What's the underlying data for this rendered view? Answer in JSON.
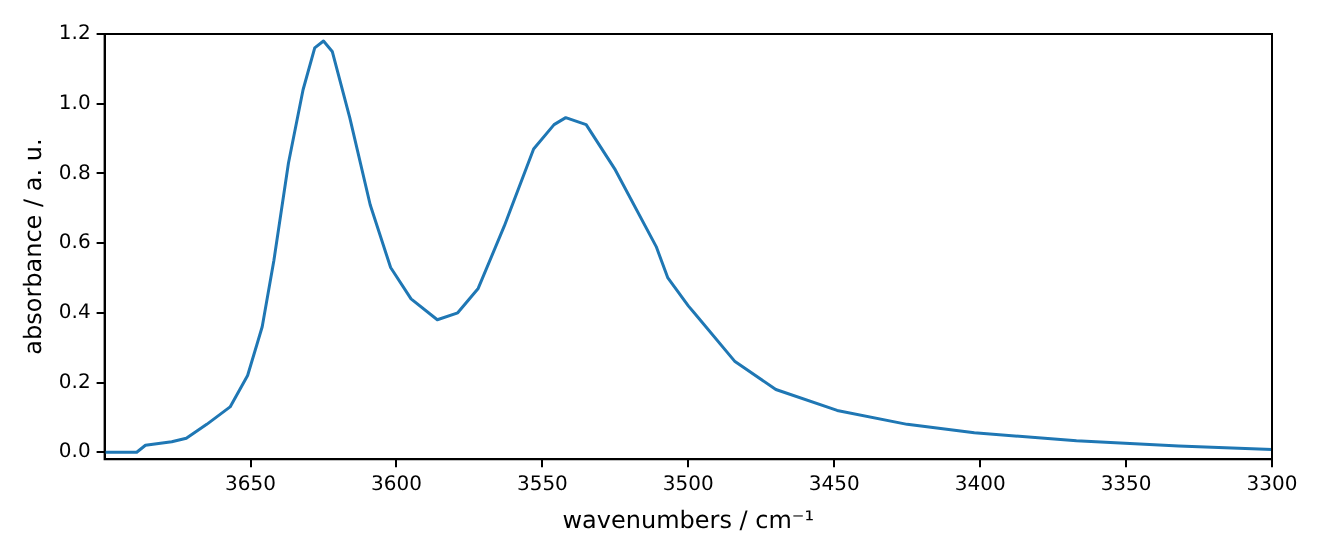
{
  "chart_data": {
    "type": "line",
    "xlabel": "wavenumbers / cm⁻¹",
    "ylabel": "absorbance / a. u.",
    "x": [
      3700,
      3689,
      3686,
      3677,
      3672,
      3665,
      3657,
      3651,
      3646,
      3642,
      3637,
      3632,
      3628,
      3625,
      3622,
      3616,
      3609,
      3602,
      3595,
      3586,
      3579,
      3572,
      3563,
      3553,
      3546,
      3542,
      3535,
      3525,
      3511,
      3507,
      3500,
      3498,
      3484,
      3470,
      3449,
      3425,
      3402,
      3367,
      3332,
      3300
    ],
    "series": [
      {
        "color": "#1f77b4",
        "values": [
          0.0,
          0.0,
          0.02,
          0.03,
          0.04,
          0.08,
          0.13,
          0.22,
          0.36,
          0.55,
          0.83,
          1.04,
          1.16,
          1.18,
          1.15,
          0.96,
          0.71,
          0.53,
          0.44,
          0.38,
          0.4,
          0.47,
          0.65,
          0.87,
          0.94,
          0.96,
          0.94,
          0.81,
          0.59,
          0.5,
          0.42,
          0.4,
          0.26,
          0.18,
          0.12,
          0.08,
          0.056,
          0.033,
          0.018,
          0.008
        ]
      }
    ],
    "xlim": [
      3700,
      3300
    ],
    "xticks": [
      3650,
      3600,
      3550,
      3500,
      3450,
      3400,
      3350,
      3300
    ],
    "ylim": [
      -0.02,
      1.2
    ],
    "yticks": [
      {
        "value": 0,
        "label": "0.0"
      },
      {
        "value": 0.2,
        "label": "0.2"
      },
      {
        "value": 0.4,
        "label": "0.4"
      },
      {
        "value": 0.6,
        "label": "0.6"
      },
      {
        "value": 0.8,
        "label": "0.8"
      },
      {
        "value": 1.0,
        "label": "1.0"
      },
      {
        "value": 1.2,
        "label": "1.2"
      }
    ],
    "grid": false,
    "legend": false,
    "marker": "none",
    "line_style": "solid"
  }
}
